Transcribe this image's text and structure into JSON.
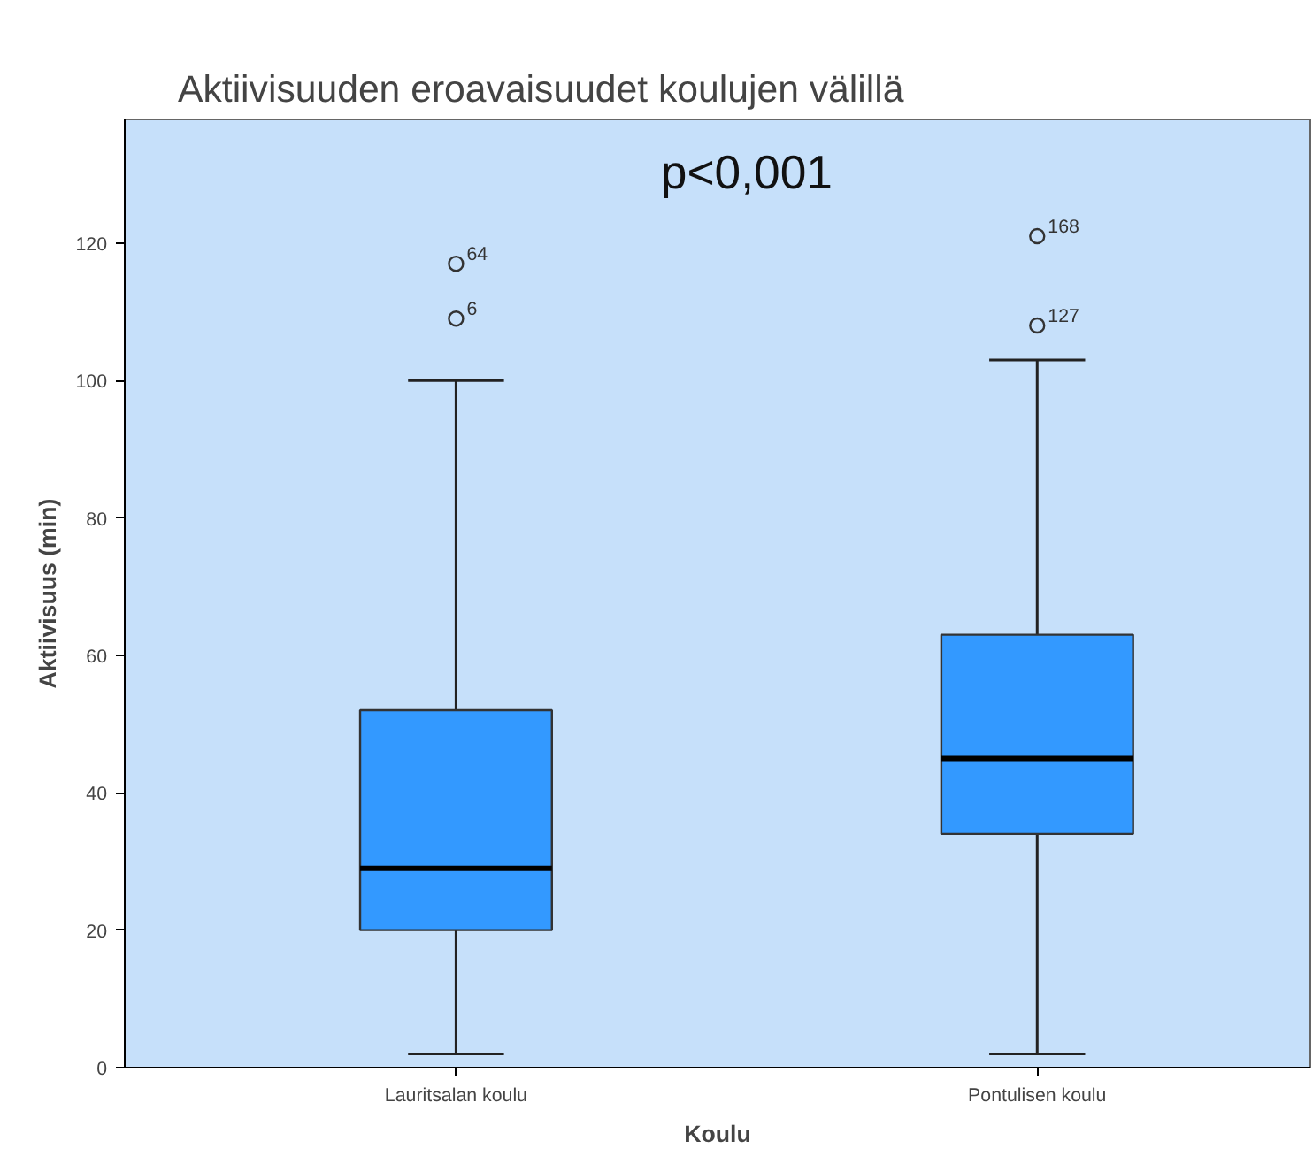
{
  "chart_data": {
    "type": "box",
    "title": "Aktiivisuuden eroavaisuudet koulujen välillä",
    "xlabel": "Koulu",
    "ylabel": "Aktiivisuus (min)",
    "categories": [
      "Lauritsalan koulu",
      "Pontulisen koulu"
    ],
    "boxes": [
      {
        "low": 2,
        "q1": 20,
        "median": 29,
        "q3": 52,
        "high": 100,
        "outliers": [
          109,
          117
        ]
      },
      {
        "low": 2,
        "q1": 34,
        "median": 45,
        "q3": 63,
        "high": 103,
        "outliers": [
          108,
          121
        ]
      }
    ],
    "color": "#3399ff",
    "ylim": [
      0,
      138
    ],
    "yticks": [
      0,
      20,
      40,
      60,
      80,
      100,
      120
    ],
    "grid": false,
    "annotations": [
      "p<0,001",
      "6",
      "64",
      "127",
      "168"
    ]
  }
}
